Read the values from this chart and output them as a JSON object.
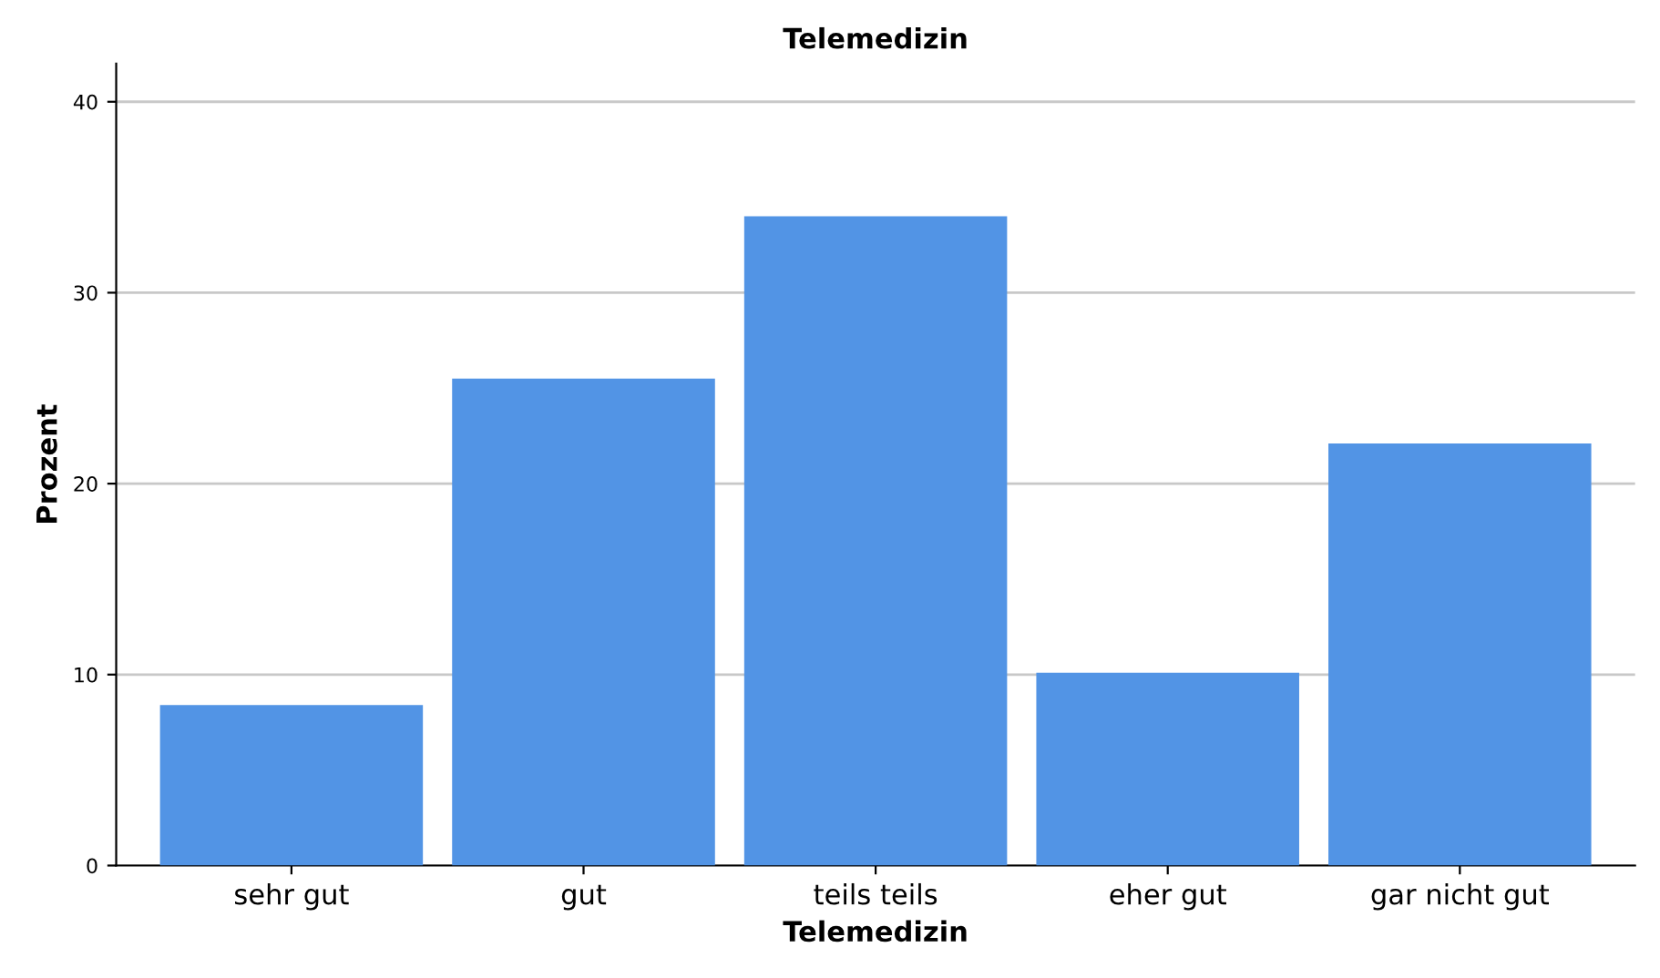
{
  "chart_data": {
    "type": "bar",
    "title": "Telemedizin",
    "xlabel": "Telemedizin",
    "ylabel": "Prozent",
    "categories": [
      "sehr gut",
      "gut",
      "teils teils",
      "eher gut",
      "gar nicht gut"
    ],
    "values": [
      8.4,
      25.5,
      34.0,
      10.1,
      22.1
    ],
    "color": "#5294e5",
    "ylim": [
      0,
      42
    ],
    "yticks": [
      0,
      10,
      20,
      30,
      40
    ],
    "grid": "y",
    "legend": false
  }
}
